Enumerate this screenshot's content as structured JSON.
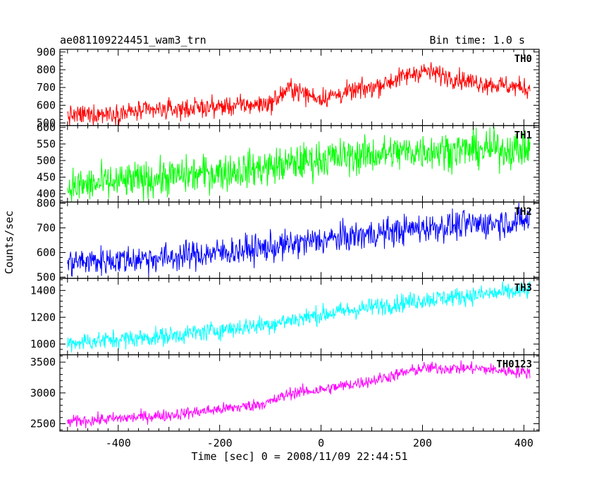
{
  "chart_data": {
    "type": "line",
    "title": "ae081109224451_wam3_trn",
    "subtitle": "Bin time: 1.0 s",
    "xlabel": "Time [sec] 0 = 2008/11/09 22:44:51",
    "ylabel": "Counts/sec",
    "xlim": [
      -515,
      430
    ],
    "xticks": [
      -400,
      -200,
      0,
      200,
      400
    ],
    "grid": false,
    "panels": [
      {
        "name": "TH0",
        "color": "#ff0000",
        "ylim": [
          485,
          915
        ],
        "yticks": [
          500,
          600,
          700,
          800,
          900
        ],
        "trend": [
          [
            -500,
            540
          ],
          [
            -300,
            575
          ],
          [
            -150,
            600
          ],
          [
            -100,
            610
          ],
          [
            -60,
            700
          ],
          [
            -30,
            660
          ],
          [
            0,
            640
          ],
          [
            100,
            700
          ],
          [
            200,
            795
          ],
          [
            300,
            730
          ],
          [
            410,
            695
          ]
        ],
        "noise": 28
      },
      {
        "name": "TH1",
        "color": "#00ff00",
        "ylim": [
          375,
          605
        ],
        "yticks": [
          400,
          450,
          500,
          550,
          600
        ],
        "trend": [
          [
            -500,
            420
          ],
          [
            -300,
            450
          ],
          [
            -100,
            480
          ],
          [
            0,
            505
          ],
          [
            200,
            530
          ],
          [
            410,
            535
          ]
        ],
        "noise": 28
      },
      {
        "name": "TH2",
        "color": "#0000ff",
        "ylim": [
          495,
          805
        ],
        "yticks": [
          500,
          600,
          700,
          800
        ],
        "trend": [
          [
            -500,
            560
          ],
          [
            -300,
            580
          ],
          [
            -100,
            620
          ],
          [
            0,
            650
          ],
          [
            200,
            700
          ],
          [
            410,
            730
          ]
        ],
        "noise": 30
      },
      {
        "name": "TH3",
        "color": "#00ffff",
        "ylim": [
          920,
          1490
        ],
        "yticks": [
          1000,
          1200,
          1400
        ],
        "trend": [
          [
            -500,
            1010
          ],
          [
            -300,
            1060
          ],
          [
            -100,
            1150
          ],
          [
            0,
            1220
          ],
          [
            200,
            1330
          ],
          [
            410,
            1400
          ]
        ],
        "noise": 35
      },
      {
        "name": "TH0123",
        "color": "#ff00ff",
        "ylim": [
          2380,
          3620
        ],
        "yticks": [
          2500,
          3000,
          3500
        ],
        "trend": [
          [
            -500,
            2530
          ],
          [
            -300,
            2640
          ],
          [
            -150,
            2780
          ],
          [
            -100,
            2850
          ],
          [
            -60,
            3000
          ],
          [
            0,
            3050
          ],
          [
            100,
            3200
          ],
          [
            200,
            3400
          ],
          [
            300,
            3400
          ],
          [
            410,
            3330
          ]
        ],
        "noise": 50
      }
    ]
  }
}
